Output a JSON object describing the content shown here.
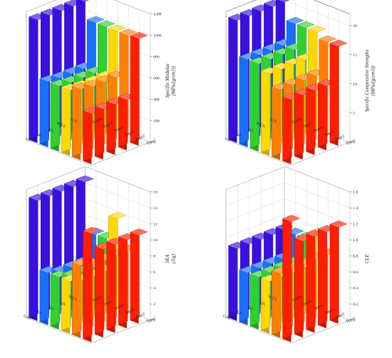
{
  "chart_data": [
    {
      "type": "bar3d",
      "zlabel_lines": [
        "Specific Modulus",
        "(MPa/(g/cm3))"
      ],
      "zticks": [
        "0",
        "200",
        "400",
        "600",
        "800",
        "1000",
        "1200"
      ],
      "zlim": [
        0,
        1200
      ],
      "row_labels": [
        "Type1",
        "Type2",
        "Type3",
        "Type4",
        "Type5",
        "Type6"
      ],
      "col_labels": [
        "I.T.",
        "I.D.",
        "D.I.",
        "W.I.S.",
        "U.N."
      ],
      "colors": [
        "#ff1e00",
        "#ff8000",
        "#ffd800",
        "#2fd12f",
        "#1a6fff",
        "#3a10e0"
      ],
      "values": [
        [
          470,
          470,
          470,
          470,
          1000
        ],
        [
          660,
          640,
          640,
          640,
          990
        ],
        [
          610,
          600,
          600,
          600,
          990
        ],
        [
          610,
          600,
          600,
          600,
          990
        ],
        [
          610,
          600,
          600,
          600,
          990
        ],
        [
          1150,
          1150,
          1150,
          1150,
          1150
        ]
      ]
    },
    {
      "type": "bar3d",
      "zlabel_lines": [
        "Specific Compressive Strengths",
        "(MPa/(g/cm3))"
      ],
      "zticks": [
        "0",
        "5",
        "10",
        "15",
        "20"
      ],
      "zlim": [
        0,
        22
      ],
      "row_labels": [
        "Type1",
        "Type2",
        "Type3",
        "Type4",
        "Type5",
        "Type6"
      ],
      "col_labels": [
        "I.T.",
        "I.D.",
        "D.I.",
        "W.I.S.",
        "U.N."
      ],
      "colors": [
        "#ff1e00",
        "#ff8000",
        "#ffd800",
        "#2fd12f",
        "#1a6fff",
        "#3a10e0"
      ],
      "values": [
        [
          11,
          11,
          11,
          11,
          17
        ],
        [
          12,
          12,
          12,
          12,
          17
        ],
        [
          14,
          14,
          14,
          14,
          18
        ],
        [
          15,
          15,
          15,
          15,
          18
        ],
        [
          15,
          15,
          15,
          15,
          18
        ],
        [
          21,
          21,
          21,
          21,
          21
        ]
      ]
    },
    {
      "type": "bar3d",
      "zlabel_lines": [
        "SEA",
        "(J/g)"
      ],
      "zticks": [
        "0",
        "2",
        "4",
        "6",
        "8",
        "10",
        "12",
        "14",
        "16"
      ],
      "zlim": [
        0,
        16
      ],
      "row_labels": [
        "Type1",
        "Type2",
        "Type3",
        "Type4",
        "Type5",
        "Type6"
      ],
      "col_labels": [
        "U.N.",
        "I.T.",
        "D.I.",
        "I.D.",
        "W.I.S."
      ],
      "colors": [
        "#ff1e00",
        "#ff8000",
        "#ffd800",
        "#2fd12f",
        "#1a6fff",
        "#3a10e0"
      ],
      "values": [
        [
          13.5,
          11,
          11,
          11,
          11
        ],
        [
          9,
          8.5,
          8.5,
          8.5,
          8.5
        ],
        [
          6.5,
          6,
          6,
          6,
          12
        ],
        [
          6.5,
          6,
          6,
          6,
          9
        ],
        [
          6.5,
          6,
          6,
          6,
          9
        ],
        [
          15,
          15,
          15,
          15,
          15
        ]
      ]
    },
    {
      "type": "bar3d",
      "zlabel_lines": [
        "CLE"
      ],
      "zticks": [
        "0",
        "0.2",
        "0.4",
        "0.6",
        "0.8",
        "1.0",
        "1.2",
        "1.4",
        "1.6"
      ],
      "zlim": [
        0,
        1.6
      ],
      "row_labels": [
        "Type1",
        "Type2",
        "Type3",
        "Type4",
        "Type5",
        "Type6"
      ],
      "col_labels": [
        "U.N.",
        "I.T.",
        "D.I.",
        "I.D.",
        "W.I.S."
      ],
      "colors": [
        "#ff1e00",
        "#ff8000",
        "#ffd800",
        "#2fd12f",
        "#1a6fff",
        "#3a10e0"
      ],
      "values": [
        [
          1.5,
          1.2,
          1.2,
          1.2,
          1.2
        ],
        [
          0.8,
          0.8,
          0.8,
          0.8,
          0.8
        ],
        [
          0.65,
          0.65,
          0.65,
          0.65,
          1.0
        ],
        [
          0.65,
          0.65,
          0.65,
          0.65,
          0.9
        ],
        [
          0.65,
          0.65,
          0.65,
          0.65,
          0.9
        ],
        [
          0.9,
          0.9,
          0.9,
          0.9,
          0.9
        ]
      ]
    }
  ]
}
